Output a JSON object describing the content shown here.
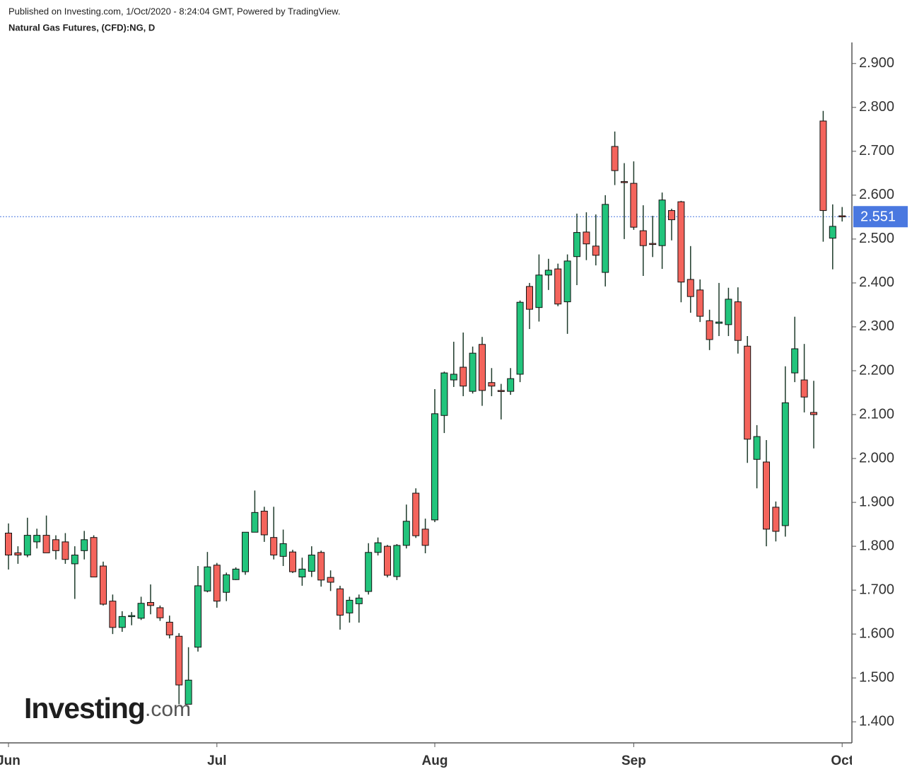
{
  "header": {
    "published": "Published on Investing.com, 1/Oct/2020 - 8:24:04 GMT, Powered by TradingView."
  },
  "logo": {
    "brand": "Investing",
    "suffix": ".com"
  },
  "chart_data": {
    "type": "candlestick",
    "title": "Natural Gas Futures, (CFD):NG, D",
    "categories": [
      "Jun",
      null,
      null,
      null,
      null,
      null,
      null,
      null,
      null,
      null,
      null,
      null,
      null,
      null,
      null,
      null,
      null,
      null,
      null,
      null,
      null,
      null,
      "Jul",
      null,
      null,
      null,
      null,
      null,
      null,
      null,
      null,
      null,
      null,
      null,
      null,
      null,
      null,
      null,
      null,
      null,
      null,
      null,
      null,
      null,
      null,
      "Aug",
      null,
      null,
      null,
      null,
      null,
      null,
      null,
      null,
      null,
      null,
      null,
      null,
      null,
      null,
      null,
      null,
      null,
      null,
      null,
      null,
      "Sep",
      null,
      null,
      null,
      null,
      null,
      null,
      null,
      null,
      null,
      null,
      null,
      null,
      null,
      null,
      null,
      null,
      null,
      null,
      null,
      null,
      null,
      "Oct"
    ],
    "open": [
      1.83,
      1.785,
      1.78,
      1.81,
      1.825,
      1.815,
      1.81,
      1.76,
      1.79,
      1.82,
      1.755,
      1.675,
      1.615,
      1.64,
      1.636,
      1.672,
      1.66,
      1.627,
      1.595,
      1.44,
      1.57,
      1.698,
      1.757,
      1.695,
      1.724,
      1.742,
      1.832,
      1.88,
      1.82,
      1.777,
      1.787,
      1.73,
      1.743,
      1.786,
      1.729,
      1.703,
      1.648,
      1.669,
      1.697,
      1.786,
      1.8,
      1.731,
      1.802,
      1.921,
      1.839,
      1.86,
      2.098,
      2.179,
      2.208,
      2.153,
      2.26,
      2.173,
      2.155,
      2.153,
      2.192,
      2.392,
      2.344,
      2.418,
      2.432,
      2.357,
      2.46,
      2.516,
      2.484,
      2.424,
      2.711,
      2.631,
      2.627,
      2.519,
      2.49,
      2.485,
      2.565,
      2.585,
      2.408,
      2.384,
      2.314,
      2.308,
      2.305,
      2.357,
      2.256,
      1.998,
      1.992,
      1.889,
      1.847,
      2.195,
      2.179,
      2.105,
      2.769,
      2.502,
      2.553
    ],
    "high": [
      1.852,
      1.8,
      1.865,
      1.84,
      1.87,
      1.825,
      1.83,
      1.8,
      1.835,
      1.825,
      1.765,
      1.69,
      1.652,
      1.65,
      1.685,
      1.713,
      1.665,
      1.642,
      1.602,
      1.57,
      1.755,
      1.787,
      1.762,
      1.74,
      1.752,
      1.832,
      1.927,
      1.89,
      1.89,
      1.838,
      1.792,
      1.774,
      1.8,
      1.79,
      1.745,
      1.71,
      1.685,
      1.69,
      1.807,
      1.82,
      1.803,
      1.805,
      1.895,
      1.932,
      1.863,
      2.158,
      2.198,
      2.266,
      2.287,
      2.255,
      2.277,
      2.206,
      2.17,
      2.206,
      2.36,
      2.4,
      2.465,
      2.455,
      2.444,
      2.465,
      2.558,
      2.561,
      2.556,
      2.6,
      2.745,
      2.673,
      2.677,
      2.577,
      2.553,
      2.606,
      2.569,
      2.587,
      2.484,
      2.408,
      2.339,
      2.4,
      2.389,
      2.39,
      2.279,
      2.076,
      2.042,
      1.902,
      2.21,
      2.323,
      2.261,
      2.177,
      2.792,
      2.579,
      2.573
    ],
    "low": [
      1.747,
      1.76,
      1.775,
      1.795,
      1.785,
      1.77,
      1.76,
      1.68,
      1.77,
      1.73,
      1.665,
      1.6,
      1.605,
      1.62,
      1.632,
      1.645,
      1.63,
      1.59,
      1.44,
      1.44,
      1.56,
      1.695,
      1.66,
      1.675,
      1.723,
      1.735,
      1.832,
      1.81,
      1.77,
      1.755,
      1.739,
      1.71,
      1.73,
      1.708,
      1.698,
      1.61,
      1.626,
      1.626,
      1.69,
      1.779,
      1.729,
      1.723,
      1.795,
      1.819,
      1.784,
      1.855,
      2.058,
      2.163,
      2.142,
      2.148,
      2.12,
      2.142,
      2.089,
      2.145,
      2.174,
      2.295,
      2.312,
      2.384,
      2.347,
      2.284,
      2.395,
      2.452,
      2.44,
      2.392,
      2.623,
      2.5,
      2.521,
      2.416,
      2.459,
      2.432,
      2.497,
      2.356,
      2.332,
      2.311,
      2.247,
      2.279,
      2.279,
      2.239,
      1.99,
      1.932,
      1.8,
      1.811,
      1.822,
      2.174,
      2.105,
      2.023,
      2.494,
      2.431,
      2.54
    ],
    "close": [
      1.78,
      1.78,
      1.825,
      1.825,
      1.785,
      1.79,
      1.77,
      1.78,
      1.815,
      1.73,
      1.668,
      1.615,
      1.64,
      1.642,
      1.67,
      1.665,
      1.637,
      1.598,
      1.484,
      1.495,
      1.71,
      1.753,
      1.675,
      1.735,
      1.748,
      1.832,
      1.877,
      1.826,
      1.78,
      1.806,
      1.742,
      1.748,
      1.78,
      1.723,
      1.718,
      1.643,
      1.677,
      1.682,
      1.786,
      1.808,
      1.734,
      1.802,
      1.857,
      1.824,
      1.802,
      2.102,
      2.195,
      2.192,
      2.165,
      2.24,
      2.155,
      2.165,
      2.153,
      2.182,
      2.356,
      2.34,
      2.418,
      2.429,
      2.352,
      2.45,
      2.515,
      2.489,
      2.463,
      2.579,
      2.656,
      2.63,
      2.527,
      2.485,
      2.488,
      2.589,
      2.544,
      2.402,
      2.369,
      2.324,
      2.271,
      2.311,
      2.363,
      2.269,
      2.044,
      2.05,
      1.839,
      1.834,
      2.127,
      2.25,
      2.14,
      2.1,
      2.565,
      2.529,
      2.551
    ],
    "up_color": "#22c47c",
    "down_color": "#f4645c",
    "last_price": 2.551,
    "last_price_color": "#4a78e0",
    "ylim": [
      1.352,
      2.948
    ],
    "yticks": [
      {
        "value": 1.4,
        "label": "1.400"
      },
      {
        "value": 1.5,
        "label": "1.500"
      },
      {
        "value": 1.6,
        "label": "1.600"
      },
      {
        "value": 1.7,
        "label": "1.700"
      },
      {
        "value": 1.8,
        "label": "1.800"
      },
      {
        "value": 1.9,
        "label": "1.900"
      },
      {
        "value": 2.0,
        "label": "2.000"
      },
      {
        "value": 2.1,
        "label": "2.100"
      },
      {
        "value": 2.2,
        "label": "2.200"
      },
      {
        "value": 2.3,
        "label": "2.300"
      },
      {
        "value": 2.4,
        "label": "2.400"
      },
      {
        "value": 2.5,
        "label": "2.500"
      },
      {
        "value": 2.6,
        "label": "2.600"
      },
      {
        "value": 2.7,
        "label": "2.700"
      },
      {
        "value": 2.8,
        "label": "2.800"
      },
      {
        "value": 2.9,
        "label": "2.900"
      }
    ],
    "grid": false
  }
}
